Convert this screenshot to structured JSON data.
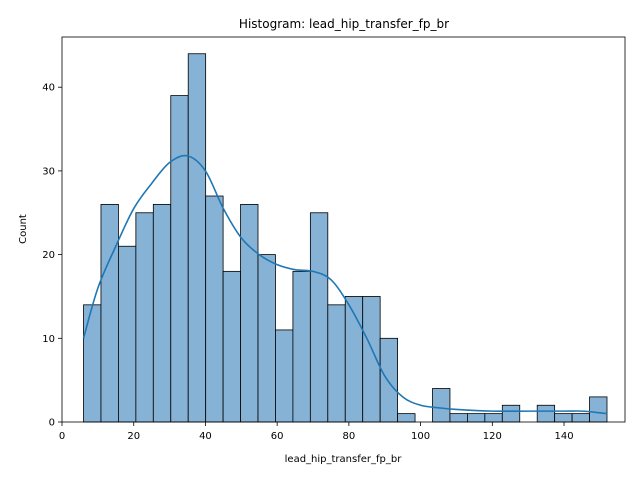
{
  "chart_data": {
    "type": "bar",
    "title": "Histogram: lead_hip_transfer_fp_br",
    "xlabel": "lead_hip_transfer_fp_br",
    "ylabel": "Count",
    "xlim": [
      0,
      157
    ],
    "ylim": [
      0,
      46
    ],
    "grid": false,
    "legend": "none",
    "x_ticks": [
      0,
      20,
      40,
      60,
      80,
      100,
      120,
      140
    ],
    "y_ticks": [
      0,
      10,
      20,
      30,
      40
    ],
    "bin_start": 6,
    "bin_width": 4.866,
    "values": [
      14,
      26,
      21,
      25,
      26,
      39,
      44,
      27,
      18,
      26,
      20,
      11,
      18,
      25,
      14,
      15,
      15,
      10,
      1,
      0,
      4,
      1,
      1,
      1,
      2,
      0,
      2,
      1,
      1,
      3
    ],
    "kde": {
      "x": [
        6,
        10,
        15,
        20,
        25,
        30,
        35,
        40,
        45,
        50,
        55,
        60,
        65,
        70,
        75,
        80,
        85,
        90,
        95,
        100,
        105,
        110,
        120,
        130,
        140,
        145,
        150,
        152
      ],
      "y": [
        10,
        16,
        21,
        25.5,
        28.5,
        31,
        31.8,
        30,
        25.5,
        22,
        20,
        18.8,
        18.2,
        18,
        17,
        14,
        10,
        5.5,
        3,
        2,
        1.7,
        1.5,
        1.3,
        1.3,
        1.3,
        1.3,
        1.1,
        1.0
      ]
    },
    "colors": {
      "bar_fill": "#86b2d6",
      "bar_edge": "#000000",
      "kde_line": "#1f77b4"
    }
  }
}
